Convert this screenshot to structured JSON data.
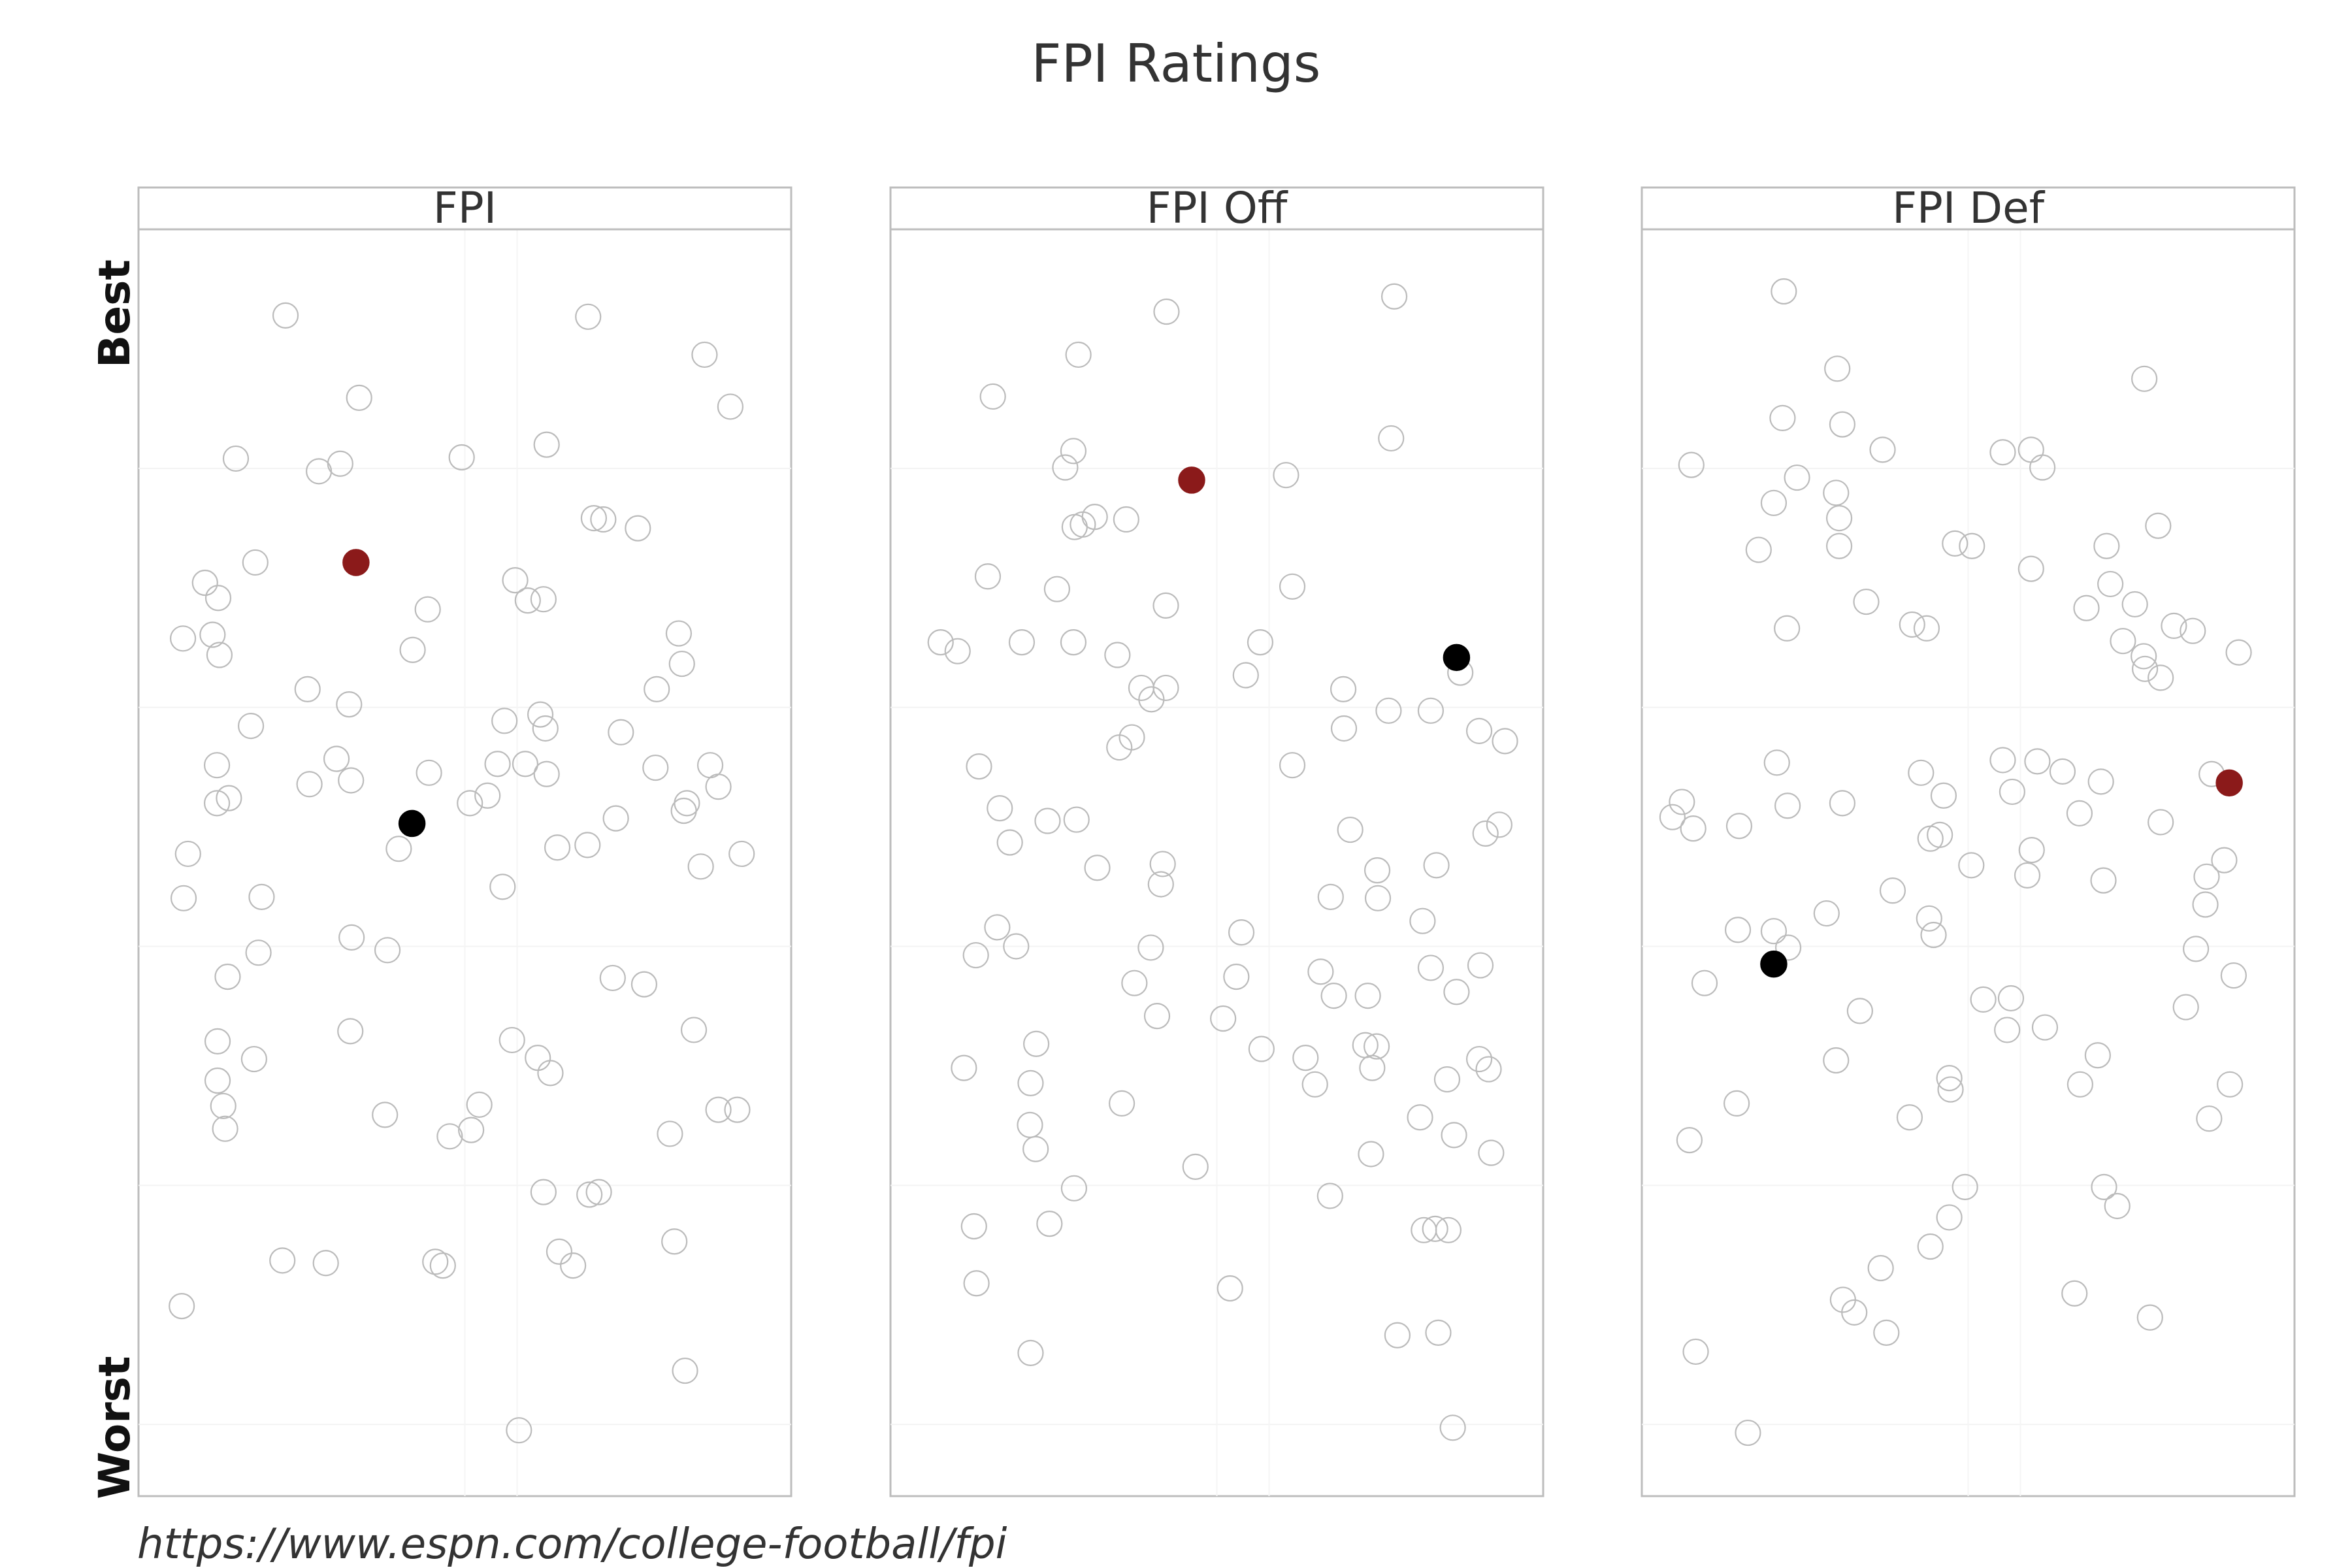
{
  "chart_data": {
    "type": "scatter",
    "title": "FPI Ratings",
    "caption": "https://www.espn.com/college-football/fpi",
    "y_axis": {
      "top_label": "Best",
      "bottom_label": "Worst",
      "scale": "rank (best at top)"
    },
    "x_axis": {
      "meaning": "random horizontal jitter, no ticks shown"
    },
    "ylim": [
      0,
      1
    ],
    "grid": true,
    "colors": {
      "other": "#bbbbbb",
      "highlight_red": "#8b1a1a",
      "highlight_black": "#000000"
    },
    "panels": [
      {
        "label": "FPI",
        "others": [
          [
            0.215,
            0.932
          ],
          [
            0.696,
            0.931
          ],
          [
            0.881,
            0.901
          ],
          [
            0.332,
            0.867
          ],
          [
            0.922,
            0.86
          ],
          [
            0.136,
            0.819
          ],
          [
            0.302,
            0.815
          ],
          [
            0.268,
            0.809
          ],
          [
            0.495,
            0.82
          ],
          [
            0.63,
            0.83
          ],
          [
            0.705,
            0.772
          ],
          [
            0.72,
            0.771
          ],
          [
            0.775,
            0.764
          ],
          [
            0.167,
            0.737
          ],
          [
            0.087,
            0.721
          ],
          [
            0.108,
            0.709
          ],
          [
            0.58,
            0.723
          ],
          [
            0.6,
            0.707
          ],
          [
            0.625,
            0.708
          ],
          [
            0.441,
            0.7
          ],
          [
            0.84,
            0.681
          ],
          [
            0.052,
            0.677
          ],
          [
            0.099,
            0.68
          ],
          [
            0.11,
            0.664
          ],
          [
            0.417,
            0.668
          ],
          [
            0.845,
            0.657
          ],
          [
            0.25,
            0.637
          ],
          [
            0.805,
            0.637
          ],
          [
            0.316,
            0.625
          ],
          [
            0.16,
            0.608
          ],
          [
            0.563,
            0.612
          ],
          [
            0.628,
            0.606
          ],
          [
            0.62,
            0.617
          ],
          [
            0.748,
            0.603
          ],
          [
            0.106,
            0.577
          ],
          [
            0.296,
            0.582
          ],
          [
            0.552,
            0.578
          ],
          [
            0.596,
            0.578
          ],
          [
            0.63,
            0.57
          ],
          [
            0.803,
            0.575
          ],
          [
            0.89,
            0.577
          ],
          [
            0.903,
            0.56
          ],
          [
            0.443,
            0.571
          ],
          [
            0.253,
            0.562
          ],
          [
            0.319,
            0.565
          ],
          [
            0.106,
            0.547
          ],
          [
            0.125,
            0.551
          ],
          [
            0.508,
            0.547
          ],
          [
            0.536,
            0.553
          ],
          [
            0.848,
            0.541
          ],
          [
            0.853,
            0.547
          ],
          [
            0.74,
            0.535
          ],
          [
            0.395,
            0.511
          ],
          [
            0.647,
            0.512
          ],
          [
            0.695,
            0.514
          ],
          [
            0.06,
            0.507
          ],
          [
            0.875,
            0.497
          ],
          [
            0.94,
            0.507
          ],
          [
            0.177,
            0.473
          ],
          [
            0.053,
            0.472
          ],
          [
            0.56,
            0.481
          ],
          [
            0.172,
            0.429
          ],
          [
            0.123,
            0.41
          ],
          [
            0.377,
            0.431
          ],
          [
            0.32,
            0.441
          ],
          [
            0.735,
            0.409
          ],
          [
            0.785,
            0.404
          ],
          [
            0.864,
            0.368
          ],
          [
            0.318,
            0.367
          ],
          [
            0.107,
            0.359
          ],
          [
            0.575,
            0.36
          ],
          [
            0.165,
            0.345
          ],
          [
            0.616,
            0.346
          ],
          [
            0.636,
            0.334
          ],
          [
            0.107,
            0.328
          ],
          [
            0.116,
            0.308
          ],
          [
            0.523,
            0.309
          ],
          [
            0.119,
            0.29
          ],
          [
            0.373,
            0.301
          ],
          [
            0.476,
            0.284
          ],
          [
            0.51,
            0.289
          ],
          [
            0.826,
            0.286
          ],
          [
            0.903,
            0.305
          ],
          [
            0.933,
            0.305
          ],
          [
            0.625,
            0.24
          ],
          [
            0.713,
            0.24
          ],
          [
            0.698,
            0.238
          ],
          [
            0.833,
            0.201
          ],
          [
            0.65,
            0.193
          ],
          [
            0.672,
            0.182
          ],
          [
            0.21,
            0.186
          ],
          [
            0.279,
            0.184
          ],
          [
            0.453,
            0.185
          ],
          [
            0.465,
            0.182
          ],
          [
            0.05,
            0.15
          ],
          [
            0.85,
            0.099
          ],
          [
            0.586,
            0.052
          ]
        ],
        "highlights": [
          {
            "color": "red",
            "x": 0.327,
            "y": 0.737
          },
          {
            "color": "black",
            "x": 0.416,
            "y": 0.531
          }
        ]
      },
      {
        "label": "FPI Off",
        "others": [
          [
            0.782,
            0.947
          ],
          [
            0.42,
            0.935
          ],
          [
            0.28,
            0.901
          ],
          [
            0.144,
            0.868
          ],
          [
            0.777,
            0.835
          ],
          [
            0.272,
            0.825
          ],
          [
            0.259,
            0.812
          ],
          [
            0.61,
            0.806
          ],
          [
            0.306,
            0.773
          ],
          [
            0.356,
            0.771
          ],
          [
            0.287,
            0.767
          ],
          [
            0.274,
            0.765
          ],
          [
            0.136,
            0.726
          ],
          [
            0.62,
            0.718
          ],
          [
            0.246,
            0.716
          ],
          [
            0.419,
            0.703
          ],
          [
            0.061,
            0.674
          ],
          [
            0.088,
            0.667
          ],
          [
            0.19,
            0.674
          ],
          [
            0.272,
            0.674
          ],
          [
            0.342,
            0.664
          ],
          [
            0.569,
            0.674
          ],
          [
            0.546,
            0.648
          ],
          [
            0.887,
            0.65
          ],
          [
            0.419,
            0.638
          ],
          [
            0.38,
            0.638
          ],
          [
            0.396,
            0.629
          ],
          [
            0.701,
            0.637
          ],
          [
            0.773,
            0.62
          ],
          [
            0.84,
            0.62
          ],
          [
            0.958,
            0.596
          ],
          [
            0.702,
            0.606
          ],
          [
            0.365,
            0.599
          ],
          [
            0.345,
            0.591
          ],
          [
            0.917,
            0.604
          ],
          [
            0.122,
            0.576
          ],
          [
            0.62,
            0.577
          ],
          [
            0.155,
            0.543
          ],
          [
            0.231,
            0.533
          ],
          [
            0.277,
            0.534
          ],
          [
            0.171,
            0.516
          ],
          [
            0.949,
            0.53
          ],
          [
            0.927,
            0.523
          ],
          [
            0.712,
            0.526
          ],
          [
            0.31,
            0.496
          ],
          [
            0.755,
            0.494
          ],
          [
            0.414,
            0.499
          ],
          [
            0.849,
            0.498
          ],
          [
            0.681,
            0.473
          ],
          [
            0.411,
            0.483
          ],
          [
            0.756,
            0.472
          ],
          [
            0.151,
            0.449
          ],
          [
            0.181,
            0.434
          ],
          [
            0.117,
            0.427
          ],
          [
            0.395,
            0.433
          ],
          [
            0.539,
            0.445
          ],
          [
            0.827,
            0.454
          ],
          [
            0.369,
            0.405
          ],
          [
            0.531,
            0.41
          ],
          [
            0.84,
            0.417
          ],
          [
            0.665,
            0.414
          ],
          [
            0.919,
            0.419
          ],
          [
            0.686,
            0.395
          ],
          [
            0.74,
            0.395
          ],
          [
            0.881,
            0.398
          ],
          [
            0.405,
            0.379
          ],
          [
            0.51,
            0.377
          ],
          [
            0.213,
            0.357
          ],
          [
            0.098,
            0.338
          ],
          [
            0.204,
            0.326
          ],
          [
            0.571,
            0.353
          ],
          [
            0.641,
            0.346
          ],
          [
            0.747,
            0.338
          ],
          [
            0.736,
            0.356
          ],
          [
            0.754,
            0.355
          ],
          [
            0.917,
            0.345
          ],
          [
            0.932,
            0.337
          ],
          [
            0.656,
            0.325
          ],
          [
            0.866,
            0.329
          ],
          [
            0.349,
            0.31
          ],
          [
            0.203,
            0.293
          ],
          [
            0.212,
            0.274
          ],
          [
            0.823,
            0.299
          ],
          [
            0.745,
            0.27
          ],
          [
            0.877,
            0.285
          ],
          [
            0.936,
            0.271
          ],
          [
            0.466,
            0.26
          ],
          [
            0.273,
            0.243
          ],
          [
            0.68,
            0.237
          ],
          [
            0.114,
            0.213
          ],
          [
            0.234,
            0.215
          ],
          [
            0.829,
            0.21
          ],
          [
            0.868,
            0.21
          ],
          [
            0.847,
            0.211
          ],
          [
            0.118,
            0.168
          ],
          [
            0.521,
            0.164
          ],
          [
            0.204,
            0.113
          ],
          [
            0.787,
            0.127
          ],
          [
            0.852,
            0.129
          ],
          [
            0.875,
            0.054
          ]
        ],
        "highlights": [
          {
            "color": "red",
            "x": 0.46,
            "y": 0.802
          },
          {
            "color": "black",
            "x": 0.881,
            "y": 0.662
          }
        ]
      },
      {
        "label": "FPI Def",
        "others": [
          [
            0.207,
            0.951
          ],
          [
            0.292,
            0.89
          ],
          [
            0.78,
            0.882
          ],
          [
            0.205,
            0.851
          ],
          [
            0.3,
            0.846
          ],
          [
            0.06,
            0.814
          ],
          [
            0.364,
            0.826
          ],
          [
            0.555,
            0.824
          ],
          [
            0.6,
            0.826
          ],
          [
            0.618,
            0.812
          ],
          [
            0.228,
            0.804
          ],
          [
            0.191,
            0.784
          ],
          [
            0.29,
            0.792
          ],
          [
            0.295,
            0.772
          ],
          [
            0.802,
            0.766
          ],
          [
            0.167,
            0.747
          ],
          [
            0.295,
            0.75
          ],
          [
            0.479,
            0.752
          ],
          [
            0.506,
            0.75
          ],
          [
            0.72,
            0.75
          ],
          [
            0.6,
            0.732
          ],
          [
            0.338,
            0.706
          ],
          [
            0.726,
            0.72
          ],
          [
            0.688,
            0.701
          ],
          [
            0.765,
            0.704
          ],
          [
            0.857,
            0.683
          ],
          [
            0.827,
            0.687
          ],
          [
            0.411,
            0.688
          ],
          [
            0.434,
            0.685
          ],
          [
            0.212,
            0.685
          ],
          [
            0.746,
            0.675
          ],
          [
            0.779,
            0.663
          ],
          [
            0.806,
            0.646
          ],
          [
            0.781,
            0.653
          ],
          [
            0.93,
            0.666
          ],
          [
            0.196,
            0.579
          ],
          [
            0.555,
            0.581
          ],
          [
            0.61,
            0.58
          ],
          [
            0.65,
            0.572
          ],
          [
            0.711,
            0.564
          ],
          [
            0.425,
            0.571
          ],
          [
            0.887,
            0.57
          ],
          [
            0.461,
            0.553
          ],
          [
            0.57,
            0.556
          ],
          [
            0.3,
            0.547
          ],
          [
            0.045,
            0.548
          ],
          [
            0.03,
            0.536
          ],
          [
            0.063,
            0.527
          ],
          [
            0.136,
            0.529
          ],
          [
            0.213,
            0.545
          ],
          [
            0.677,
            0.539
          ],
          [
            0.806,
            0.532
          ],
          [
            0.455,
            0.522
          ],
          [
            0.44,
            0.519
          ],
          [
            0.601,
            0.51
          ],
          [
            0.505,
            0.498
          ],
          [
            0.594,
            0.49
          ],
          [
            0.907,
            0.502
          ],
          [
            0.879,
            0.489
          ],
          [
            0.715,
            0.486
          ],
          [
            0.38,
            0.478
          ],
          [
            0.438,
            0.456
          ],
          [
            0.275,
            0.46
          ],
          [
            0.877,
            0.467
          ],
          [
            0.214,
            0.433
          ],
          [
            0.191,
            0.446
          ],
          [
            0.134,
            0.447
          ],
          [
            0.445,
            0.443
          ],
          [
            0.862,
            0.432
          ],
          [
            0.081,
            0.405
          ],
          [
            0.524,
            0.392
          ],
          [
            0.568,
            0.393
          ],
          [
            0.562,
            0.368
          ],
          [
            0.622,
            0.37
          ],
          [
            0.328,
            0.383
          ],
          [
            0.706,
            0.348
          ],
          [
            0.846,
            0.386
          ],
          [
            0.922,
            0.411
          ],
          [
            0.47,
            0.33
          ],
          [
            0.29,
            0.344
          ],
          [
            0.472,
            0.321
          ],
          [
            0.678,
            0.325
          ],
          [
            0.916,
            0.325
          ],
          [
            0.132,
            0.31
          ],
          [
            0.057,
            0.281
          ],
          [
            0.407,
            0.299
          ],
          [
            0.883,
            0.298
          ],
          [
            0.495,
            0.244
          ],
          [
            0.716,
            0.244
          ],
          [
            0.737,
            0.229
          ],
          [
            0.47,
            0.22
          ],
          [
            0.44,
            0.197
          ],
          [
            0.361,
            0.18
          ],
          [
            0.301,
            0.155
          ],
          [
            0.319,
            0.145
          ],
          [
            0.669,
            0.16
          ],
          [
            0.789,
            0.141
          ],
          [
            0.37,
            0.129
          ],
          [
            0.067,
            0.114
          ],
          [
            0.15,
            0.05
          ]
        ],
        "highlights": [
          {
            "color": "red",
            "x": 0.915,
            "y": 0.563
          },
          {
            "color": "black",
            "x": 0.191,
            "y": 0.42
          }
        ]
      }
    ]
  }
}
